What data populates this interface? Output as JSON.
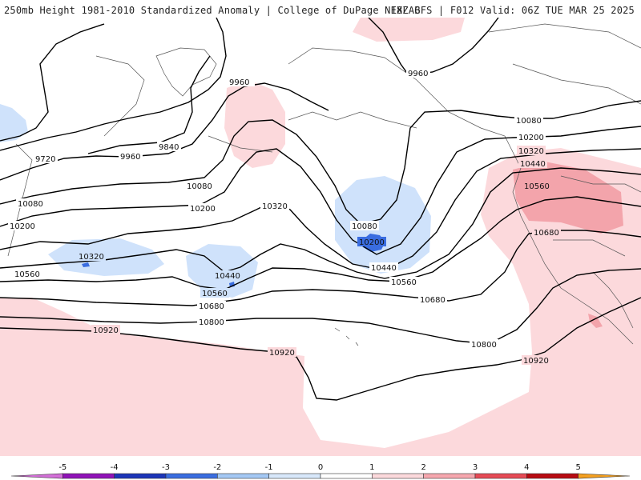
{
  "header": {
    "left": "250mb Height 1981-2010 Standardized Anomaly | College of DuPage NEXLAB",
    "right": "18Z GFS | F012 Valid: 06Z TUE MAR 25 2025"
  },
  "contours": [
    {
      "label": "9960",
      "id": "c9960"
    },
    {
      "label": "9840",
      "id": "c9840"
    },
    {
      "label": "9720",
      "id": "c9720"
    },
    {
      "label": "10080",
      "id": "c10080"
    },
    {
      "label": "10200",
      "id": "c10200"
    },
    {
      "label": "10320",
      "id": "c10320"
    },
    {
      "label": "10440",
      "id": "c10440"
    },
    {
      "label": "10560",
      "id": "c10560"
    },
    {
      "label": "10680",
      "id": "c10680"
    },
    {
      "label": "10800",
      "id": "c10800"
    },
    {
      "label": "10920",
      "id": "c10920"
    }
  ],
  "colorbar": {
    "ticks": [
      "-5",
      "-4",
      "-3",
      "-2",
      "-1",
      "0",
      "1",
      "2",
      "3",
      "4",
      "5"
    ],
    "colors": [
      "#d36fd8",
      "#9012b8",
      "#1c35b8",
      "#3a6de0",
      "#a4c8f4",
      "#d8e8fb",
      "#ffffff",
      "#fcd9dc",
      "#f6a7ae",
      "#e64a55",
      "#b80b12",
      "#f4a020"
    ]
  }
}
